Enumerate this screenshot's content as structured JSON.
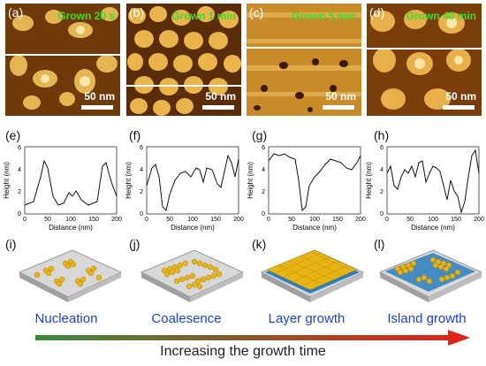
{
  "afm_panels": [
    {
      "label": "(a)",
      "time": "Grown 20 s",
      "scale": "50 nm"
    },
    {
      "label": "(b)",
      "time": "Grown 1 min",
      "scale": "50 nm"
    },
    {
      "label": "(c)",
      "time": "Grown 5 min",
      "scale": "50 nm"
    },
    {
      "label": "(d)",
      "time": "Grown 40 min",
      "scale": "50 nm"
    }
  ],
  "profiles": [
    {
      "label": "(e)",
      "ylabel": "Height (nm)",
      "xlabel": "Distance (nm)",
      "yticks": [
        "0",
        "2",
        "4",
        "6"
      ],
      "xticks": [
        "0",
        "50",
        "100",
        "150",
        "200"
      ]
    },
    {
      "label": "(f)",
      "ylabel": "Height (nm)",
      "xlabel": "Distance (nm)",
      "yticks": [
        "0",
        "2",
        "4",
        "6"
      ],
      "xticks": [
        "0",
        "50",
        "100",
        "150",
        "200"
      ]
    },
    {
      "label": "(g)",
      "ylabel": "Height (nm)",
      "xlabel": "Distance (nm)",
      "yticks": [
        "0",
        "2",
        "4",
        "6"
      ],
      "xticks": [
        "0",
        "50",
        "100",
        "150",
        "200"
      ]
    },
    {
      "label": "(h)",
      "ylabel": "Height (nm)",
      "xlabel": "Distance (nm)",
      "yticks": [
        "0",
        "2",
        "4",
        "6"
      ],
      "xticks": [
        "0",
        "50",
        "100",
        "150",
        "200"
      ]
    }
  ],
  "models": [
    {
      "label": "(i)",
      "stage": "Nucleation"
    },
    {
      "label": "(j)",
      "stage": "Coalesence"
    },
    {
      "label": "(k)",
      "stage": "Layer  growth"
    },
    {
      "label": "(l)",
      "stage": "Island growth"
    }
  ],
  "arrow_caption": "Increasing the growth time",
  "colors": {
    "afm_dark": "#3a1a05",
    "afm_mid": "#a8600e",
    "afm_light": "#f6d37a",
    "stage_text": "#1f3fd0",
    "arrow_start": "#3a8c3a",
    "arrow_end": "#e0241b",
    "atom_gold": "#e8b414",
    "atom_blue": "#2a7fc0",
    "time_label": "#3cdc2c"
  }
}
